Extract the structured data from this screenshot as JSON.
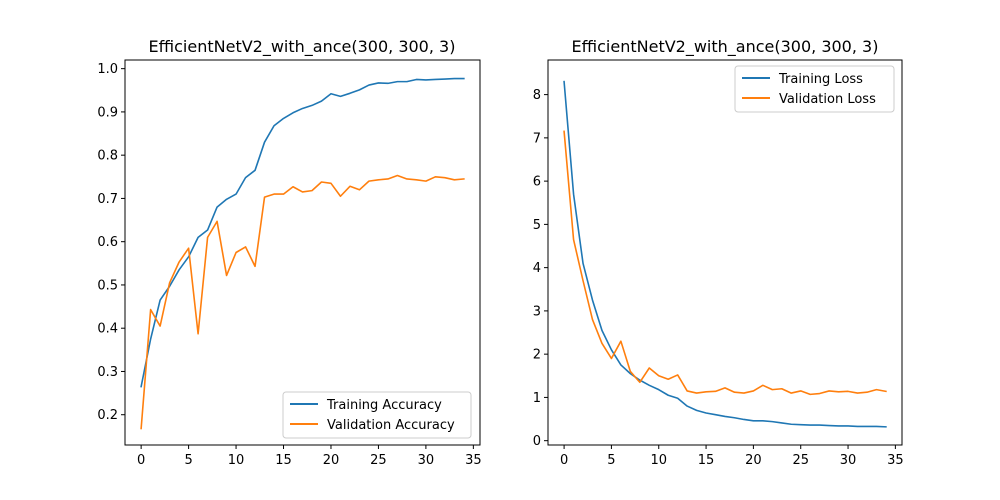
{
  "colors": {
    "training": "#1f77b4",
    "validation": "#ff7f0e",
    "axis": "#000000",
    "background": "#ffffff"
  },
  "chart_data": [
    {
      "type": "line",
      "title": "EfficientNetV2_with_ance(300, 300, 3)",
      "xlabel": "",
      "ylabel": "",
      "xlim": [
        -1.7,
        35.7
      ],
      "ylim": [
        0.13,
        1.02
      ],
      "xticks": [
        0,
        5,
        10,
        15,
        20,
        25,
        30,
        35
      ],
      "yticks": [
        0.2,
        0.3,
        0.4,
        0.5,
        0.6,
        0.7,
        0.8,
        0.9,
        1.0
      ],
      "ytick_labels": [
        "0.2",
        "0.3",
        "0.4",
        "0.5",
        "0.6",
        "0.7",
        "0.8",
        "0.9",
        "1.0"
      ],
      "legend_position": "lower-right",
      "grid": false,
      "x": [
        0,
        1,
        2,
        3,
        4,
        5,
        6,
        7,
        8,
        9,
        10,
        11,
        12,
        13,
        14,
        15,
        16,
        17,
        18,
        19,
        20,
        21,
        22,
        23,
        24,
        25,
        26,
        27,
        28,
        29,
        30,
        31,
        32,
        33,
        34
      ],
      "series": [
        {
          "name": "Training Accuracy",
          "color": "#1f77b4",
          "values": [
            0.265,
            0.375,
            0.465,
            0.497,
            0.535,
            0.565,
            0.61,
            0.627,
            0.68,
            0.698,
            0.71,
            0.748,
            0.765,
            0.83,
            0.868,
            0.885,
            0.898,
            0.908,
            0.915,
            0.925,
            0.942,
            0.936,
            0.943,
            0.951,
            0.962,
            0.967,
            0.966,
            0.97,
            0.97,
            0.975,
            0.974,
            0.975,
            0.976,
            0.977,
            0.977
          ]
        },
        {
          "name": "Validation Accuracy",
          "color": "#ff7f0e",
          "values": [
            0.168,
            0.443,
            0.405,
            0.505,
            0.553,
            0.585,
            0.387,
            0.61,
            0.647,
            0.522,
            0.575,
            0.588,
            0.543,
            0.703,
            0.71,
            0.71,
            0.727,
            0.715,
            0.718,
            0.738,
            0.735,
            0.705,
            0.728,
            0.72,
            0.74,
            0.743,
            0.745,
            0.753,
            0.745,
            0.743,
            0.74,
            0.75,
            0.748,
            0.743,
            0.745
          ]
        }
      ]
    },
    {
      "type": "line",
      "title": "EfficientNetV2_with_ance(300, 300, 3)",
      "xlabel": "",
      "ylabel": "",
      "xlim": [
        -1.7,
        35.7
      ],
      "ylim": [
        -0.1,
        8.8
      ],
      "xticks": [
        0,
        5,
        10,
        15,
        20,
        25,
        30,
        35
      ],
      "yticks": [
        0,
        1,
        2,
        3,
        4,
        5,
        6,
        7,
        8
      ],
      "ytick_labels": [
        "0",
        "1",
        "2",
        "3",
        "4",
        "5",
        "6",
        "7",
        "8"
      ],
      "legend_position": "upper-right",
      "grid": false,
      "x": [
        0,
        1,
        2,
        3,
        4,
        5,
        6,
        7,
        8,
        9,
        10,
        11,
        12,
        13,
        14,
        15,
        16,
        17,
        18,
        19,
        20,
        21,
        22,
        23,
        24,
        25,
        26,
        27,
        28,
        29,
        30,
        31,
        32,
        33,
        34
      ],
      "series": [
        {
          "name": "Training Loss",
          "color": "#1f77b4",
          "values": [
            8.3,
            5.7,
            4.1,
            3.25,
            2.55,
            2.1,
            1.75,
            1.55,
            1.4,
            1.28,
            1.18,
            1.05,
            0.98,
            0.8,
            0.7,
            0.64,
            0.6,
            0.56,
            0.53,
            0.49,
            0.46,
            0.46,
            0.44,
            0.41,
            0.38,
            0.37,
            0.36,
            0.36,
            0.35,
            0.34,
            0.34,
            0.33,
            0.33,
            0.33,
            0.32
          ]
        },
        {
          "name": "Validation Loss",
          "color": "#ff7f0e",
          "values": [
            7.15,
            4.65,
            3.7,
            2.8,
            2.25,
            1.9,
            2.3,
            1.6,
            1.35,
            1.68,
            1.5,
            1.42,
            1.52,
            1.15,
            1.1,
            1.13,
            1.14,
            1.22,
            1.12,
            1.1,
            1.15,
            1.28,
            1.18,
            1.2,
            1.1,
            1.15,
            1.07,
            1.09,
            1.15,
            1.13,
            1.14,
            1.1,
            1.12,
            1.18,
            1.14
          ]
        }
      ]
    }
  ]
}
